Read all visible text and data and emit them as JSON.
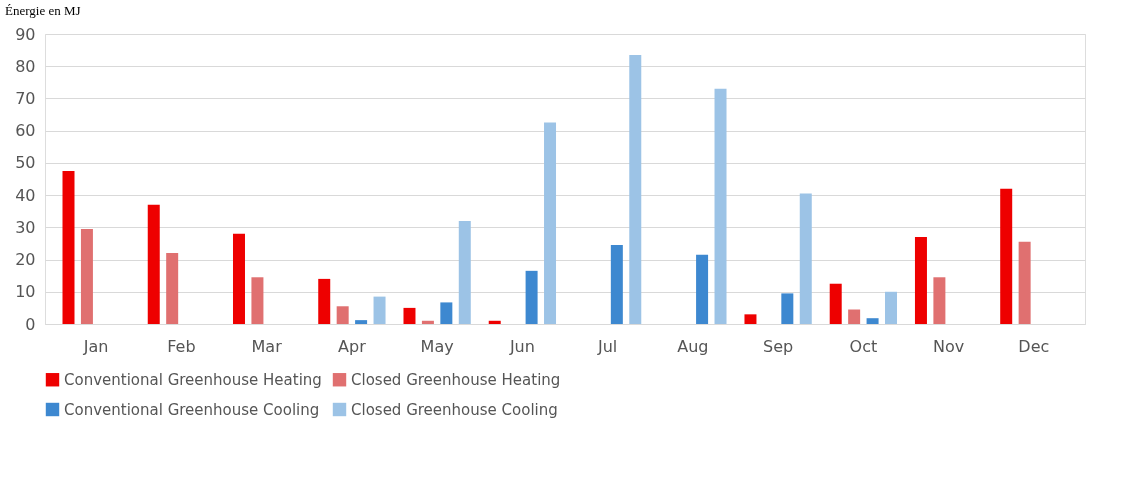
{
  "chart_data": {
    "type": "bar",
    "ylabel": "Énergie en MJ",
    "categories": [
      "Jan",
      "Feb",
      "Mar",
      "Apr",
      "May",
      "Jun",
      "Jul",
      "Aug",
      "Sep",
      "Oct",
      "Nov",
      "Dec"
    ],
    "series": [
      {
        "name": "Conventional Greenhouse Heating",
        "color": "#ee0000",
        "values": [
          47.5,
          37,
          28,
          14,
          5,
          1,
          null,
          null,
          3,
          12.5,
          27,
          42
        ]
      },
      {
        "name": "Closed Greenhouse Heating",
        "color": "#e07070",
        "values": [
          29.5,
          22,
          14.5,
          5.5,
          1,
          null,
          null,
          null,
          null,
          4.5,
          14.5,
          25.5
        ]
      },
      {
        "name": "Conventional Greenhouse Cooling",
        "color": "#3d88d0",
        "values": [
          null,
          null,
          null,
          1.2,
          6.7,
          16.5,
          24.5,
          21.5,
          9.5,
          1.8,
          null,
          null
        ]
      },
      {
        "name": "Closed Greenhouse Cooling",
        "color": "#9cc3e6",
        "values": [
          null,
          null,
          null,
          8.5,
          32,
          62.5,
          83.5,
          73,
          40.5,
          10,
          null,
          null
        ]
      }
    ],
    "ylim": [
      0,
      90
    ],
    "yticks": [
      0,
      10,
      20,
      30,
      40,
      50,
      60,
      70,
      80,
      90
    ],
    "grid": "y",
    "legend": "bottom"
  }
}
